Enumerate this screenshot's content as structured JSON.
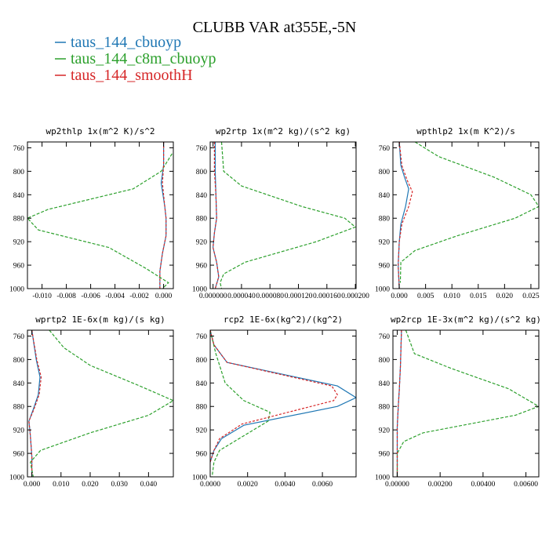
{
  "figure": {
    "title": "CLUBB VAR at355E,-5N",
    "legend": [
      {
        "name": "taus_144_cbuoyp",
        "color": "#1f77b4"
      },
      {
        "name": "taus_144_c8m_cbuoyp",
        "color": "#2ca02c"
      },
      {
        "name": "taus_144_smoothH",
        "color": "#d62728"
      }
    ]
  },
  "chart_data": [
    {
      "type": "line",
      "title": "wp2thlp  1x(m^2 K)/s^2",
      "xlim": [
        -0.0112,
        0.0008
      ],
      "ylim": [
        1000,
        750
      ],
      "x_ticks": [
        -0.01,
        -0.008,
        -0.006,
        -0.004,
        -0.002,
        0.0
      ],
      "x_tick_labels": [
        "-0.010",
        "-0.008",
        "-0.006",
        "-0.004",
        "-0.002",
        "0.000"
      ],
      "y_ticks": [
        760,
        800,
        840,
        880,
        920,
        960,
        1000
      ],
      "series": [
        {
          "name": "taus_144_cbuoyp",
          "x": [
            0.0,
            0.0,
            -0.0002,
            0.0001,
            0.0002,
            0.0002,
            -0.0001,
            -0.0003,
            -0.0003
          ],
          "y": [
            750,
            790,
            820,
            860,
            880,
            910,
            940,
            970,
            1000
          ]
        },
        {
          "name": "taus_144_c8m_cbuoyp",
          "x": [
            0.0007,
            -0.0002,
            -0.0025,
            -0.0095,
            -0.0112,
            -0.0103,
            -0.0045,
            -0.0015,
            0.0004,
            -0.0001
          ],
          "y": [
            770,
            800,
            830,
            865,
            880,
            900,
            930,
            965,
            990,
            1000
          ]
        },
        {
          "name": "taus_144_smoothH",
          "x": [
            0.0,
            0.0,
            -0.0001,
            0.0001,
            0.0002,
            0.0002,
            -0.0001,
            -0.0003,
            -0.0003
          ],
          "y": [
            750,
            790,
            820,
            860,
            880,
            910,
            940,
            970,
            1000
          ]
        }
      ]
    },
    {
      "type": "line",
      "title": "wp2rtp  1x(m^2 kg)/(s^2 kg)",
      "xlim": [
        -4e-06,
        0.000201
      ],
      "ylim": [
        1000,
        750
      ],
      "x_ticks": [
        0.0,
        4e-05,
        8e-05,
        0.00012,
        0.00016,
        0.0002
      ],
      "x_tick_labels": [
        "0.000000",
        "0.000040",
        "0.000080",
        "0.000120",
        "0.000160",
        "0.000200"
      ],
      "y_ticks": [
        760,
        800,
        840,
        880,
        920,
        960,
        1000
      ],
      "series": [
        {
          "name": "taus_144_cbuoyp",
          "x": [
            3e-06,
            3e-06,
            4e-06,
            5e-06,
            2e-06,
            0.0,
            5e-06,
            8e-06,
            3e-06
          ],
          "y": [
            750,
            800,
            840,
            880,
            905,
            930,
            955,
            980,
            1000
          ]
        },
        {
          "name": "taus_144_c8m_cbuoyp",
          "x": [
            1.2e-05,
            1.5e-05,
            4e-05,
            0.000125,
            0.000185,
            0.0002,
            0.000145,
            4.5e-05,
            1.5e-05,
            1e-05,
            1.2e-05
          ],
          "y": [
            750,
            800,
            825,
            860,
            880,
            895,
            920,
            955,
            975,
            990,
            1000
          ]
        },
        {
          "name": "taus_144_smoothH",
          "x": [
            2e-06,
            2e-06,
            4e-06,
            5e-06,
            2e-06,
            0.0,
            5e-06,
            8e-06,
            3e-06
          ],
          "y": [
            750,
            800,
            840,
            880,
            905,
            930,
            955,
            980,
            1000
          ]
        }
      ]
    },
    {
      "type": "line",
      "title": "wpthlp2  1x(m K^2)/s",
      "xlim": [
        -0.0012,
        0.0265
      ],
      "ylim": [
        1000,
        750
      ],
      "x_ticks": [
        0.0,
        0.005,
        0.01,
        0.015,
        0.02,
        0.025
      ],
      "x_tick_labels": [
        "0.000",
        "0.005",
        "0.010",
        "0.015",
        "0.020",
        "0.025"
      ],
      "y_ticks": [
        760,
        800,
        840,
        880,
        920,
        960,
        1000
      ],
      "series": [
        {
          "name": "taus_144_cbuoyp",
          "x": [
            0.0,
            0.0003,
            0.001,
            0.0018,
            0.0012,
            0.0003,
            0.0,
            -0.0002,
            0.0
          ],
          "y": [
            750,
            790,
            810,
            830,
            860,
            890,
            920,
            960,
            1000
          ]
        },
        {
          "name": "taus_144_c8m_cbuoyp",
          "x": [
            0.003,
            0.0075,
            0.018,
            0.025,
            0.0265,
            0.022,
            0.011,
            0.003,
            0.0003,
            0.0002
          ],
          "y": [
            750,
            775,
            810,
            840,
            860,
            880,
            910,
            935,
            955,
            990
          ]
        },
        {
          "name": "taus_144_smoothH",
          "x": [
            0.0,
            0.0005,
            0.0015,
            0.0025,
            0.0018,
            0.0005,
            0.0,
            -0.0002,
            0.0
          ],
          "y": [
            750,
            790,
            815,
            835,
            860,
            890,
            920,
            960,
            1000
          ]
        }
      ]
    },
    {
      "type": "line",
      "title": "wprtp2  1E-6x(m kg)/(s kg)",
      "xlim": [
        -0.0015,
        0.0485
      ],
      "ylim": [
        1000,
        750
      ],
      "x_ticks": [
        0.0,
        0.01,
        0.02,
        0.03,
        0.04
      ],
      "x_tick_labels": [
        "0.000",
        "0.010",
        "0.020",
        "0.030",
        "0.040"
      ],
      "y_ticks": [
        760,
        800,
        840,
        880,
        920,
        960,
        1000
      ],
      "series": [
        {
          "name": "taus_144_cbuoyp",
          "x": [
            0.0,
            0.0015,
            0.0028,
            0.0022,
            0.0005,
            -0.001,
            -0.0005,
            0.0,
            0.0
          ],
          "y": [
            750,
            800,
            830,
            860,
            885,
            905,
            930,
            965,
            1000
          ]
        },
        {
          "name": "taus_144_c8m_cbuoyp",
          "x": [
            0.006,
            0.011,
            0.02,
            0.037,
            0.0485,
            0.04,
            0.02,
            0.003,
            -0.0005,
            0.0005
          ],
          "y": [
            750,
            780,
            810,
            845,
            870,
            895,
            925,
            955,
            975,
            1000
          ]
        },
        {
          "name": "taus_144_smoothH",
          "x": [
            0.0,
            0.0017,
            0.0032,
            0.0025,
            0.0007,
            -0.001,
            -0.0005,
            0.0,
            0.0
          ],
          "y": [
            750,
            800,
            830,
            860,
            885,
            905,
            930,
            965,
            1000
          ]
        }
      ]
    },
    {
      "type": "line",
      "title": "rcp2  1E-6x(kg^2)/(kg^2)",
      "xlim": [
        0.0,
        0.0078
      ],
      "ylim": [
        1000,
        750
      ],
      "x_ticks": [
        0.0,
        0.002,
        0.004,
        0.006
      ],
      "x_tick_labels": [
        "0.0000",
        "0.0020",
        "0.0040",
        "0.0060"
      ],
      "y_ticks": [
        760,
        800,
        840,
        880,
        920,
        960,
        1000
      ],
      "series": [
        {
          "name": "taus_144_cbuoyp",
          "x": [
            0.0,
            0.0002,
            0.0009,
            0.0068,
            0.0078,
            0.0068,
            0.0018,
            0.0006,
            0.0002,
            0.0
          ],
          "y": [
            750,
            775,
            805,
            845,
            865,
            880,
            912,
            935,
            955,
            975
          ]
        },
        {
          "name": "taus_144_c8m_cbuoyp",
          "x": [
            0.0,
            0.0003,
            0.0008,
            0.0018,
            0.0032,
            0.0031,
            0.0018,
            0.0005,
            0.0002,
            0.0001
          ],
          "y": [
            750,
            790,
            840,
            870,
            890,
            905,
            930,
            955,
            975,
            1000
          ]
        },
        {
          "name": "taus_144_smoothH",
          "x": [
            0.0,
            0.0002,
            0.0009,
            0.0065,
            0.0068,
            0.0066,
            0.0017,
            0.0005,
            0.0002,
            0.0
          ],
          "y": [
            750,
            775,
            805,
            845,
            860,
            870,
            910,
            935,
            955,
            975
          ]
        }
      ]
    },
    {
      "type": "line",
      "title": "wp2rcp  1E-3x(m^2 kg)/(s^2 kg)",
      "xlim": [
        -0.0002,
        0.0066
      ],
      "ylim": [
        1000,
        750
      ],
      "x_ticks": [
        0.0,
        0.002,
        0.004,
        0.006
      ],
      "x_tick_labels": [
        "0.00000",
        "0.00200",
        "0.00400",
        "0.00600"
      ],
      "y_ticks": [
        760,
        800,
        840,
        880,
        920,
        960,
        1000
      ],
      "series": [
        {
          "name": "taus_144_cbuoyp",
          "x": [
            0.0002,
            0.00015,
            0.0001,
            5e-05,
            0.0,
            0.0,
            0.0
          ],
          "y": [
            750,
            810,
            850,
            880,
            915,
            955,
            1000
          ]
        },
        {
          "name": "taus_144_c8m_cbuoyp",
          "x": [
            0.0004,
            0.0008,
            0.0025,
            0.0052,
            0.0066,
            0.0055,
            0.0012,
            0.0003,
            0.0,
            0.0
          ],
          "y": [
            750,
            790,
            815,
            850,
            880,
            895,
            925,
            940,
            960,
            1000
          ]
        },
        {
          "name": "taus_144_smoothH",
          "x": [
            0.0002,
            0.00015,
            0.0001,
            5e-05,
            0.0,
            0.0,
            0.0
          ],
          "y": [
            750,
            810,
            850,
            880,
            915,
            955,
            1000
          ]
        }
      ]
    }
  ]
}
